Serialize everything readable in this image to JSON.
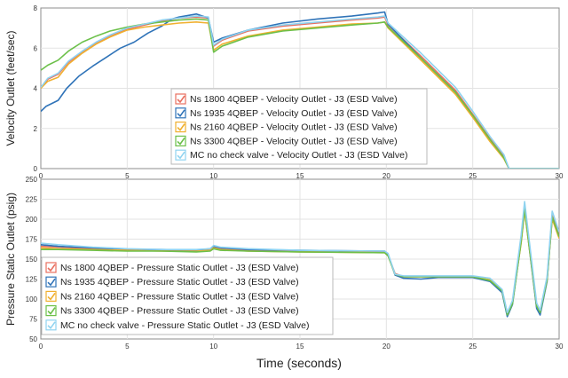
{
  "window": {
    "x_axis_label": "Time (seconds)"
  },
  "colors": {
    "background": "#ffffff",
    "grid": "#e3e3e3",
    "axis": "#8c8c8c"
  },
  "chart_data": [
    {
      "type": "line",
      "title": "",
      "xlabel": "",
      "ylabel": "Velocity Outlet (feet/sec)",
      "xlim": [
        0,
        30
      ],
      "ylim": [
        0,
        8
      ],
      "x_ticks": [
        0,
        5,
        10,
        15,
        20,
        25,
        30
      ],
      "x_tick_labels": [
        "0",
        "5",
        "10",
        "15",
        "20",
        "25",
        "30"
      ],
      "y_ticks": [
        0,
        2,
        4,
        6,
        8
      ],
      "y_tick_labels": [
        "0",
        "2",
        "4",
        "6",
        "8"
      ],
      "grid": true,
      "legend_position": "center",
      "series": [
        {
          "name": "Ns 1800 4QBEP - Velocity Outlet - J3 (ESD Valve)",
          "color": "#e87060",
          "x": [
            0,
            0.4,
            1.0,
            1.6,
            2.4,
            3.2,
            4.0,
            5.0,
            6.0,
            7.0,
            8.0,
            9.0,
            9.7,
            10.0,
            10.5,
            12,
            14,
            16,
            18,
            19.5,
            19.9,
            20.1,
            22.0,
            24.0,
            25.0,
            26.0,
            26.8,
            27.1,
            30
          ],
          "y": [
            4.0,
            4.45,
            4.7,
            5.3,
            5.8,
            6.25,
            6.6,
            6.95,
            7.15,
            7.35,
            7.5,
            7.55,
            7.5,
            6.1,
            6.4,
            6.85,
            7.1,
            7.25,
            7.4,
            7.5,
            7.55,
            7.15,
            5.6,
            3.9,
            2.7,
            1.5,
            0.6,
            0.0,
            0.0
          ]
        },
        {
          "name": "Ns 1935 4QBEP - Velocity Outlet - J3 (ESD Valve)",
          "color": "#2f73b8",
          "x": [
            0,
            0.3,
            1.0,
            1.5,
            2.2,
            3.0,
            3.8,
            4.6,
            5.4,
            6.2,
            7.0,
            7.6,
            8.0,
            9.0,
            9.7,
            10.0,
            10.5,
            12,
            14,
            16,
            18,
            19.5,
            19.9,
            20.1,
            22.0,
            24.0,
            25.0,
            26.0,
            26.8,
            27.1,
            30
          ],
          "y": [
            2.85,
            3.1,
            3.4,
            4.0,
            4.6,
            5.1,
            5.55,
            6.0,
            6.3,
            6.75,
            7.1,
            7.45,
            7.55,
            7.7,
            7.5,
            6.3,
            6.5,
            6.9,
            7.25,
            7.45,
            7.6,
            7.75,
            7.8,
            7.2,
            5.5,
            3.8,
            2.6,
            1.4,
            0.55,
            0.0,
            0.0
          ]
        },
        {
          "name": "Ns 2160 4QBEP - Velocity Outlet - J3 (ESD Valve)",
          "color": "#f0b030",
          "x": [
            0,
            0.4,
            1.0,
            1.6,
            2.4,
            3.2,
            4.0,
            5.0,
            6.0,
            7.0,
            8.0,
            9.0,
            9.7,
            10.0,
            10.5,
            12,
            14,
            16,
            18,
            19.5,
            19.9,
            20.1,
            22.0,
            24.0,
            25.0,
            26.0,
            26.8,
            27.1,
            30
          ],
          "y": [
            4.0,
            4.35,
            4.55,
            5.2,
            5.75,
            6.2,
            6.55,
            6.9,
            7.05,
            7.15,
            7.25,
            7.3,
            7.25,
            5.9,
            6.2,
            6.6,
            6.9,
            7.05,
            7.2,
            7.25,
            7.3,
            7.0,
            5.4,
            3.7,
            2.55,
            1.35,
            0.5,
            0.0,
            0.0
          ]
        },
        {
          "name": "Ns 3300 4QBEP - Velocity Outlet - J3 (ESD Valve)",
          "color": "#6cc04a",
          "x": [
            0,
            0.4,
            1.0,
            1.6,
            2.4,
            3.2,
            4.0,
            5.0,
            6.0,
            7.0,
            8.0,
            9.0,
            9.7,
            10.0,
            10.5,
            12,
            14,
            16,
            18,
            19.5,
            19.9,
            20.1,
            22.0,
            24.0,
            25.0,
            26.0,
            26.8,
            27.1,
            30
          ],
          "y": [
            4.9,
            5.15,
            5.4,
            5.85,
            6.3,
            6.6,
            6.85,
            7.05,
            7.2,
            7.3,
            7.4,
            7.45,
            7.4,
            5.8,
            6.1,
            6.55,
            6.85,
            7.0,
            7.15,
            7.25,
            7.3,
            7.05,
            5.5,
            3.8,
            2.65,
            1.45,
            0.55,
            0.0,
            0.0
          ]
        },
        {
          "name": "MC no check valve - Velocity Outlet - J3 (ESD Valve)",
          "color": "#8fd3f0",
          "x": [
            0,
            0.4,
            1.0,
            1.6,
            2.4,
            3.2,
            4.0,
            5.0,
            6.0,
            7.0,
            8.0,
            9.0,
            9.7,
            10.0,
            10.5,
            12,
            14,
            16,
            18,
            19.5,
            19.9,
            20.1,
            22.0,
            24.0,
            25.0,
            26.0,
            26.8,
            27.1,
            30
          ],
          "y": [
            4.05,
            4.5,
            4.75,
            5.35,
            5.85,
            6.3,
            6.65,
            7.0,
            7.2,
            7.4,
            7.5,
            7.6,
            7.55,
            6.15,
            6.45,
            6.9,
            7.15,
            7.3,
            7.45,
            7.55,
            7.6,
            7.25,
            5.75,
            4.05,
            2.85,
            1.6,
            0.7,
            0.0,
            0.0
          ]
        }
      ]
    },
    {
      "type": "line",
      "title": "",
      "xlabel": "Time (seconds)",
      "ylabel": "Pressure Static Outlet (psig)",
      "xlim": [
        0,
        30
      ],
      "ylim": [
        50,
        250
      ],
      "x_ticks": [
        0,
        5,
        10,
        15,
        20,
        25,
        30
      ],
      "x_tick_labels": [
        "0",
        "5",
        "10",
        "15",
        "20",
        "25",
        "30"
      ],
      "y_ticks": [
        50,
        75,
        100,
        125,
        150,
        175,
        200,
        225,
        250
      ],
      "y_tick_labels": [
        "50",
        "75",
        "100",
        "125",
        "150",
        "175",
        "200",
        "225",
        "250"
      ],
      "grid": true,
      "legend_position": "bottom-left",
      "series": [
        {
          "name": "Ns 1800 4QBEP - Pressure Static Outlet - J3 (ESD Valve)",
          "color": "#e87060",
          "x": [
            0,
            1,
            3,
            5,
            7,
            9,
            9.8,
            10.0,
            10.4,
            12,
            15,
            19.9,
            20.1,
            20.5,
            21.0,
            22.0,
            23.0,
            25.0,
            26.0,
            26.7,
            27.0,
            27.3,
            27.8,
            28.0,
            28.7,
            28.9,
            29.3,
            29.6,
            30.0
          ],
          "y": [
            166,
            165,
            163,
            162,
            161,
            161,
            162,
            165,
            163,
            161,
            160,
            159,
            155,
            132,
            128,
            128,
            128,
            128,
            124,
            110,
            80,
            95,
            175,
            215,
            90,
            82,
            125,
            205,
            180
          ]
        },
        {
          "name": "Ns 1935 4QBEP - Pressure Static Outlet - J3 (ESD Valve)",
          "color": "#2f73b8",
          "x": [
            0,
            1,
            3,
            5,
            7,
            9,
            9.8,
            10.0,
            10.4,
            12,
            15,
            19.9,
            20.1,
            20.5,
            21.0,
            22.0,
            23.0,
            25.0,
            26.0,
            26.7,
            27.0,
            27.3,
            27.8,
            28.0,
            28.7,
            28.9,
            29.3,
            29.6,
            30.0
          ],
          "y": [
            168,
            166,
            164,
            162,
            162,
            161,
            163,
            166,
            164,
            162,
            161,
            160,
            156,
            130,
            126,
            125,
            127,
            127,
            122,
            108,
            78,
            93,
            172,
            212,
            88,
            80,
            122,
            202,
            178
          ]
        },
        {
          "name": "Ns 2160 4QBEP - Pressure Static Outlet - J3 (ESD Valve)",
          "color": "#f0b030",
          "x": [
            0,
            1,
            3,
            5,
            7,
            9,
            9.8,
            10.0,
            10.4,
            12,
            15,
            19.9,
            20.1,
            20.5,
            21.0,
            22.0,
            23.0,
            25.0,
            26.0,
            26.7,
            27.0,
            27.3,
            27.8,
            28.0,
            28.7,
            28.9,
            29.3,
            29.6,
            30.0
          ],
          "y": [
            164,
            163,
            162,
            161,
            160,
            160,
            161,
            164,
            162,
            160,
            159,
            158,
            154,
            131,
            128,
            128,
            128,
            128,
            124,
            111,
            82,
            96,
            170,
            210,
            92,
            84,
            124,
            200,
            176
          ]
        },
        {
          "name": "Ns 3300 4QBEP - Pressure Static Outlet - J3 (ESD Valve)",
          "color": "#6cc04a",
          "x": [
            0,
            1,
            3,
            5,
            7,
            9,
            9.8,
            10.0,
            10.4,
            12,
            15,
            19.9,
            20.1,
            20.5,
            21.0,
            22.0,
            23.0,
            25.0,
            26.0,
            26.7,
            27.0,
            27.3,
            27.8,
            28.0,
            28.7,
            28.9,
            29.3,
            29.6,
            30.0
          ],
          "y": [
            162,
            162,
            161,
            160,
            160,
            159,
            160,
            163,
            161,
            160,
            159,
            158,
            154,
            131,
            128,
            128,
            128,
            128,
            123,
            110,
            80,
            94,
            172,
            213,
            91,
            83,
            124,
            203,
            178
          ]
        },
        {
          "name": "MC no check valve - Pressure Static Outlet - J3 (ESD Valve)",
          "color": "#8fd3f0",
          "x": [
            0,
            1,
            3,
            5,
            7,
            9,
            9.8,
            10.0,
            10.4,
            12,
            15,
            19.9,
            20.1,
            20.5,
            21.0,
            22.0,
            23.0,
            25.0,
            26.0,
            26.7,
            27.0,
            27.3,
            27.8,
            28.0,
            28.7,
            28.9,
            29.3,
            29.6,
            30.0
          ],
          "y": [
            170,
            168,
            165,
            163,
            162,
            162,
            163,
            167,
            165,
            163,
            161,
            160,
            157,
            131,
            129,
            129,
            129,
            129,
            126,
            112,
            83,
            98,
            180,
            222,
            95,
            86,
            128,
            210,
            184
          ]
        }
      ]
    }
  ]
}
